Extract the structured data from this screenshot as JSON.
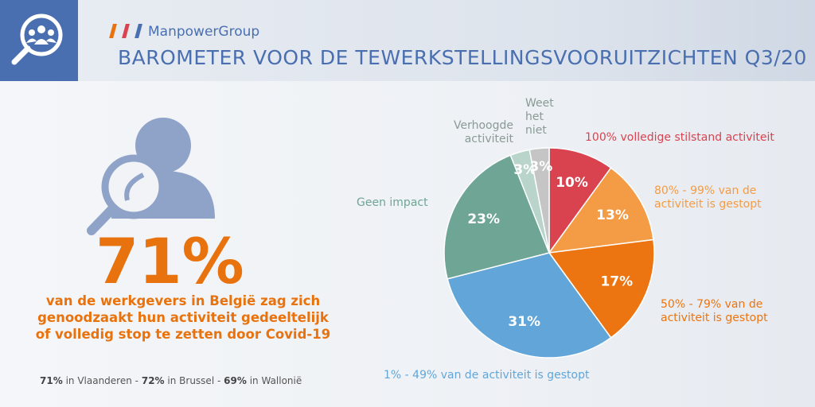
{
  "header": {
    "brand": "ManpowerGroup",
    "title": "BAROMETER VOOR DE TEWERKSTELLINGSVOORUITZICHTEN Q3/20"
  },
  "highlight": {
    "figure": "71%",
    "text": "van de werkgevers in België zag zich genoodzaakt hun activiteit gedeeltelijk of volledig stop te zetten door Covid-19",
    "regional": [
      {
        "value": "71%",
        "label": "in Vlaanderen"
      },
      {
        "value": "72%",
        "label": "in Brussel"
      },
      {
        "value": "69%",
        "label": "in Wallonië"
      }
    ],
    "separator": "-"
  },
  "chart_data": {
    "type": "pie",
    "categories": [
      "100% volledige stilstand activiteit",
      "80% - 99% van de activiteit is gestopt",
      "50% - 79% van de activiteit is gestopt",
      "1% - 49% van de activiteit is gestopt",
      "Geen impact",
      "Verhoogde activiteit",
      "Weet het niet"
    ],
    "values": [
      10,
      13,
      17,
      31,
      23,
      3,
      3
    ],
    "value_labels": [
      "10%",
      "13%",
      "17%",
      "31%",
      "23%",
      "3%",
      "3%"
    ],
    "colors": [
      "#d9434f",
      "#f39c45",
      "#ec7411",
      "#62a6d9",
      "#6fa595",
      "#b9d4cb",
      "#c5c5c5"
    ]
  }
}
